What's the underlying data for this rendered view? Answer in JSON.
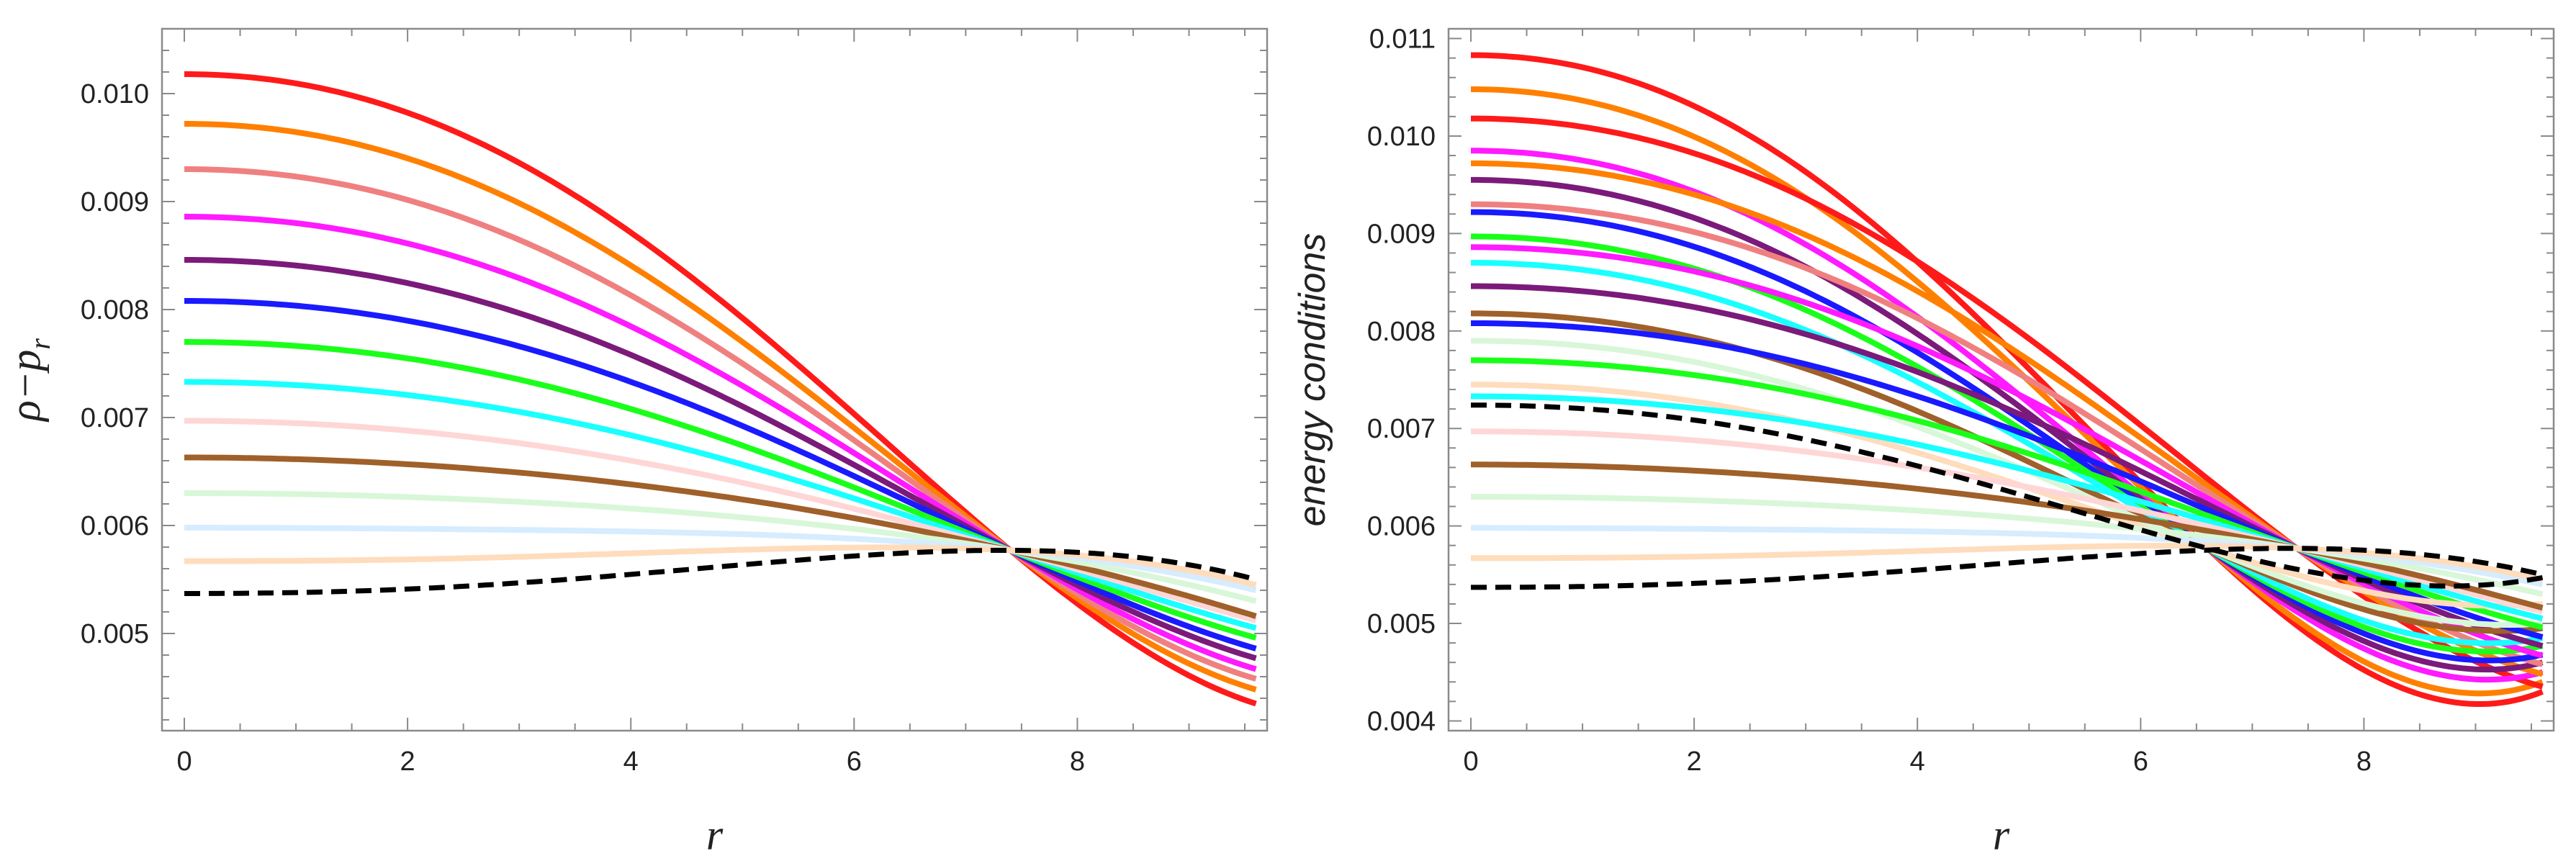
{
  "chart_data": [
    {
      "type": "line",
      "title": "",
      "xlabel": "r",
      "ylabel": "ρ−p_r",
      "ylabel_main": "ρ−p",
      "ylabel_sub": "r",
      "xlim": [
        -0.2,
        9.7
      ],
      "ylim": [
        0.0041,
        0.0106
      ],
      "xticks": [
        "0",
        "2",
        "4",
        "6",
        "8"
      ],
      "xtick_values": [
        0,
        2,
        4,
        6,
        8
      ],
      "yticks": [
        "0.005",
        "0.006",
        "0.007",
        "0.008",
        "0.009",
        "0.010"
      ],
      "ytick_values": [
        0.005,
        0.006,
        0.007,
        0.008,
        0.009,
        0.01
      ],
      "crossing_point": {
        "x": 7.4,
        "y": 0.00577
      },
      "x_end": 9.6,
      "series": [
        {
          "name": "red",
          "color": "#ff1a1a",
          "style": "solid",
          "y0": 0.01018,
          "yend": 0.00435
        },
        {
          "name": "orange",
          "color": "#ff8000",
          "style": "solid",
          "y0": 0.00972,
          "yend": 0.00448
        },
        {
          "name": "salmon",
          "color": "#f08080",
          "style": "solid",
          "y0": 0.0093,
          "yend": 0.00458
        },
        {
          "name": "magenta",
          "color": "#ff1aff",
          "style": "solid",
          "y0": 0.00886,
          "yend": 0.00467
        },
        {
          "name": "purple",
          "color": "#7b1a7b",
          "style": "solid",
          "y0": 0.00846,
          "yend": 0.00477
        },
        {
          "name": "blue",
          "color": "#1a1aff",
          "style": "solid",
          "y0": 0.00808,
          "yend": 0.00486
        },
        {
          "name": "green",
          "color": "#1aff1a",
          "style": "solid",
          "y0": 0.0077,
          "yend": 0.00496
        },
        {
          "name": "cyan",
          "color": "#1affff",
          "style": "solid",
          "y0": 0.00733,
          "yend": 0.00505
        },
        {
          "name": "pink",
          "color": "#ffd6d6",
          "style": "solid",
          "y0": 0.00697,
          "yend": 0.00512
        },
        {
          "name": "brown",
          "color": "#a0602a",
          "style": "solid",
          "y0": 0.00663,
          "yend": 0.00516
        },
        {
          "name": "light-green",
          "color": "#d8f7d8",
          "style": "solid",
          "y0": 0.0063,
          "yend": 0.0053
        },
        {
          "name": "light-blue",
          "color": "#d6ecff",
          "style": "solid",
          "y0": 0.00598,
          "yend": 0.0054
        },
        {
          "name": "peach",
          "color": "#ffdcbc",
          "style": "solid",
          "y0": 0.00567,
          "yend": 0.00545
        },
        {
          "name": "black-dashed",
          "color": "#000000",
          "style": "dashed",
          "y0": 0.00537,
          "yend": 0.0055
        }
      ]
    },
    {
      "type": "line",
      "title": "",
      "xlabel": "r",
      "ylabel": "energy conditions",
      "xlim": [
        -0.2,
        9.7
      ],
      "ylim": [
        0.0039,
        0.0111
      ],
      "xticks": [
        "0",
        "2",
        "4",
        "6",
        "8"
      ],
      "xtick_values": [
        0,
        2,
        4,
        6,
        8
      ],
      "yticks": [
        "0.004",
        "0.005",
        "0.006",
        "0.007",
        "0.008",
        "0.009",
        "0.010",
        "0.011"
      ],
      "ytick_values": [
        0.004,
        0.005,
        0.006,
        0.007,
        0.008,
        0.009,
        0.01,
        0.011
      ],
      "x_end": 9.6,
      "series": [
        {
          "name": "red-a",
          "color": "#ff1a1a",
          "style": "solid",
          "y0": 0.01083,
          "yend": 0.0043,
          "cross_x": 6.6
        },
        {
          "name": "orange-a",
          "color": "#ff8000",
          "style": "solid",
          "y0": 0.01048,
          "yend": 0.0044,
          "cross_x": 6.6
        },
        {
          "name": "red-b",
          "color": "#ff1a1a",
          "style": "solid",
          "y0": 0.01018,
          "yend": 0.00435,
          "cross_x": 7.4
        },
        {
          "name": "magenta-a",
          "color": "#ff1aff",
          "style": "solid",
          "y0": 0.00985,
          "yend": 0.0045,
          "cross_x": 6.6
        },
        {
          "name": "orange-b",
          "color": "#ff8000",
          "style": "solid",
          "y0": 0.00972,
          "yend": 0.00448,
          "cross_x": 7.4
        },
        {
          "name": "purple-a",
          "color": "#7b1a7b",
          "style": "solid",
          "y0": 0.00955,
          "yend": 0.0046,
          "cross_x": 6.6
        },
        {
          "name": "salmon-b",
          "color": "#f08080",
          "style": "solid",
          "y0": 0.0093,
          "yend": 0.00458,
          "cross_x": 7.4
        },
        {
          "name": "blue-a",
          "color": "#1a1aff",
          "style": "solid",
          "y0": 0.00922,
          "yend": 0.00468,
          "cross_x": 6.6
        },
        {
          "name": "green-a",
          "color": "#1aff1a",
          "style": "solid",
          "y0": 0.00897,
          "yend": 0.00477,
          "cross_x": 6.6
        },
        {
          "name": "magenta-b",
          "color": "#ff1aff",
          "style": "solid",
          "y0": 0.00886,
          "yend": 0.00467,
          "cross_x": 7.4
        },
        {
          "name": "cyan-a",
          "color": "#1affff",
          "style": "solid",
          "y0": 0.0087,
          "yend": 0.00485,
          "cross_x": 6.6
        },
        {
          "name": "purple-b",
          "color": "#7b1a7b",
          "style": "solid",
          "y0": 0.00846,
          "yend": 0.00477,
          "cross_x": 7.4
        },
        {
          "name": "brown-a",
          "color": "#a0602a",
          "style": "solid",
          "y0": 0.00818,
          "yend": 0.00495,
          "cross_x": 6.6
        },
        {
          "name": "blue-b",
          "color": "#1a1aff",
          "style": "solid",
          "y0": 0.00808,
          "yend": 0.00486,
          "cross_x": 7.4
        },
        {
          "name": "light-green-a",
          "color": "#d8f7d8",
          "style": "solid",
          "y0": 0.0079,
          "yend": 0.005,
          "cross_x": 6.6
        },
        {
          "name": "green-b",
          "color": "#1aff1a",
          "style": "solid",
          "y0": 0.0077,
          "yend": 0.00496,
          "cross_x": 7.4
        },
        {
          "name": "peach-a",
          "color": "#ffdcbc",
          "style": "solid",
          "y0": 0.00745,
          "yend": 0.0052,
          "cross_x": 6.6
        },
        {
          "name": "cyan-b",
          "color": "#1affff",
          "style": "solid",
          "y0": 0.00733,
          "yend": 0.00505,
          "cross_x": 7.4
        },
        {
          "name": "pink-b",
          "color": "#ffd6d6",
          "style": "solid",
          "y0": 0.00697,
          "yend": 0.00512,
          "cross_x": 7.4
        },
        {
          "name": "brown-b",
          "color": "#a0602a",
          "style": "solid",
          "y0": 0.00663,
          "yend": 0.00516,
          "cross_x": 7.4
        },
        {
          "name": "light-green-b",
          "color": "#d8f7d8",
          "style": "solid",
          "y0": 0.0063,
          "yend": 0.0053,
          "cross_x": 7.4
        },
        {
          "name": "light-blue-b",
          "color": "#d6ecff",
          "style": "solid",
          "y0": 0.00598,
          "yend": 0.0054,
          "cross_x": 7.4
        },
        {
          "name": "peach-b",
          "color": "#ffdcbc",
          "style": "solid",
          "y0": 0.00567,
          "yend": 0.00545,
          "cross_x": 7.4
        },
        {
          "name": "black-dashed-a",
          "color": "#000000",
          "style": "dashed",
          "y0": 0.00724,
          "yend": 0.00547,
          "cross_x": 6.6
        },
        {
          "name": "black-dashed-b",
          "color": "#000000",
          "style": "dashed",
          "y0": 0.00537,
          "yend": 0.0055,
          "cross_x": 7.4
        }
      ]
    }
  ]
}
